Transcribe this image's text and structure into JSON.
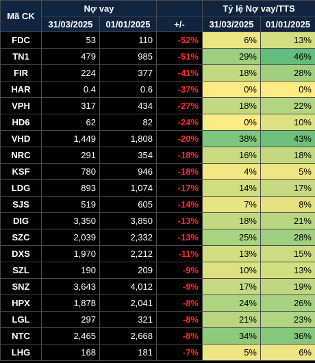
{
  "table": {
    "header": {
      "code": "Mã CK",
      "debt": "Nợ vay",
      "change": "+/-",
      "ratio": "Tỷ lệ Nợ vay/TTS",
      "dates": [
        "31/03/2025",
        "01/01/2025",
        "31/03/2025",
        "01/01/2025"
      ]
    },
    "rows": [
      [
        "FDC",
        "53",
        "110",
        "-52%",
        "6%",
        "13%"
      ],
      [
        "TN1",
        "479",
        "985",
        "-51%",
        "29%",
        "46%"
      ],
      [
        "FIR",
        "224",
        "377",
        "-41%",
        "18%",
        "28%"
      ],
      [
        "HAR",
        "0.4",
        "0.6",
        "-37%",
        "0%",
        "0%"
      ],
      [
        "VPH",
        "317",
        "434",
        "-27%",
        "18%",
        "22%"
      ],
      [
        "HD6",
        "62",
        "82",
        "-24%",
        "0%",
        "10%"
      ],
      [
        "VHD",
        "1,449",
        "1,808",
        "-20%",
        "38%",
        "43%"
      ],
      [
        "NRC",
        "291",
        "354",
        "-18%",
        "16%",
        "18%"
      ],
      [
        "KSF",
        "780",
        "946",
        "-18%",
        "4%",
        "5%"
      ],
      [
        "LDG",
        "893",
        "1,074",
        "-17%",
        "14%",
        "17%"
      ],
      [
        "SJS",
        "519",
        "605",
        "-14%",
        "7%",
        "8%"
      ],
      [
        "DIG",
        "3,350",
        "3,850",
        "-13%",
        "18%",
        "21%"
      ],
      [
        "SZC",
        "2,039",
        "2,332",
        "-13%",
        "25%",
        "28%"
      ],
      [
        "DXS",
        "1,970",
        "2,212",
        "-11%",
        "13%",
        "15%"
      ],
      [
        "SZL",
        "190",
        "209",
        "-9%",
        "10%",
        "13%"
      ],
      [
        "SNZ",
        "3,643",
        "4,012",
        "-9%",
        "17%",
        "19%"
      ],
      [
        "HPX",
        "1,878",
        "2,041",
        "-8%",
        "24%",
        "26%"
      ],
      [
        "LGL",
        "297",
        "321",
        "-8%",
        "21%",
        "23%"
      ],
      [
        "NTC",
        "2,465",
        "2,668",
        "-8%",
        "34%",
        "36%"
      ],
      [
        "LHG",
        "168",
        "181",
        "-7%",
        "5%",
        "6%"
      ]
    ]
  }
}
